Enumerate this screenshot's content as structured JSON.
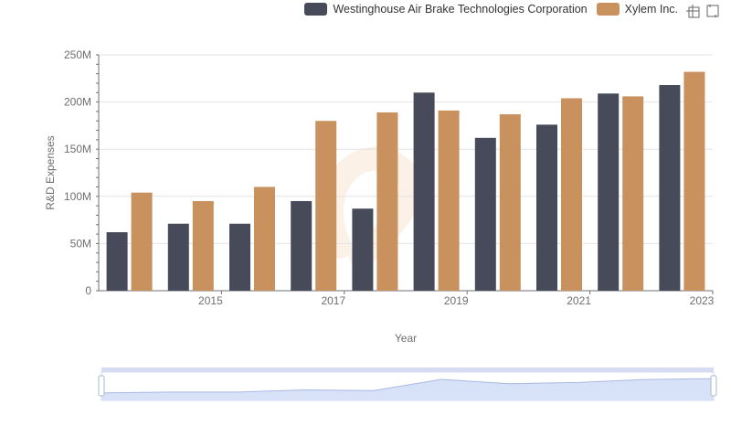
{
  "legend": {
    "items": [
      {
        "label": "Westinghouse Air Brake Technologies Corporation",
        "color": "#474a59"
      },
      {
        "label": "Xylem Inc.",
        "color": "#c8915e"
      }
    ]
  },
  "toolbox": {
    "icons": [
      "zoom-icon",
      "restore-icon"
    ]
  },
  "chart_data": {
    "type": "bar",
    "xlabel": "Year",
    "ylabel": "R&D Expenses",
    "categories": [
      "2014",
      "2015",
      "2016",
      "2017",
      "2018",
      "2019",
      "2020",
      "2021",
      "2022",
      "2023"
    ],
    "x_tick_labels": [
      "2015",
      "2017",
      "2019",
      "2021",
      "2023"
    ],
    "ylim": [
      0,
      250000000
    ],
    "y_tick_labels": [
      "0",
      "50M",
      "100M",
      "150M",
      "200M",
      "250M"
    ],
    "grid": true,
    "legend_position": "top-right",
    "series": [
      {
        "name": "Westinghouse Air Brake Technologies Corporation",
        "color": "#474a59",
        "values": [
          62000000,
          71000000,
          71000000,
          95000000,
          87000000,
          210000000,
          162000000,
          176000000,
          209000000,
          218000000
        ]
      },
      {
        "name": "Xylem Inc.",
        "color": "#c8915e",
        "values": [
          104000000,
          95000000,
          110000000,
          180000000,
          189000000,
          191000000,
          187000000,
          204000000,
          206000000,
          232000000
        ]
      }
    ],
    "data_zoom": {
      "start_percent": 0,
      "end_percent": 100
    }
  }
}
